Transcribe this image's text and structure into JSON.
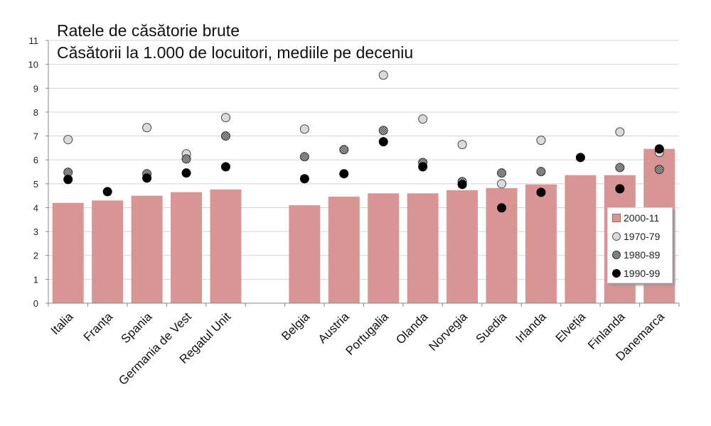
{
  "chart_data": {
    "type": "bar",
    "title": "Ratele de căsătorie brute",
    "subtitle": "Căsătorii la 1.000 de locuitori, mediile pe deceniu",
    "xlabel": "",
    "ylabel": "",
    "ylim": [
      0,
      11
    ],
    "yticks": [
      "0",
      "1",
      "2",
      "3",
      "4",
      "5",
      "6",
      "7",
      "8",
      "9",
      "10",
      "11"
    ],
    "grid": true,
    "legend_position": "right",
    "categories": [
      "Italia",
      "Franța",
      "Spania",
      "Germania de Vest",
      "Regatul Unit",
      "Belgia",
      "Austria",
      "Portugalia",
      "Olanda",
      "Norvegia",
      "Suedia",
      "Irlanda",
      "Elveția",
      "Finlanda",
      "Danemarca"
    ],
    "series": [
      {
        "name": "2000-11",
        "kind": "bar",
        "color": "#d99594",
        "values": [
          4.2,
          4.3,
          4.5,
          4.65,
          4.76,
          4.1,
          4.46,
          4.6,
          4.6,
          4.73,
          4.82,
          4.97,
          5.36,
          5.36,
          6.46
        ]
      },
      {
        "name": "1970-79",
        "kind": "point",
        "color": "#d9d9de",
        "values": [
          6.85,
          null,
          7.35,
          6.25,
          7.77,
          7.29,
          null,
          9.55,
          7.71,
          6.64,
          5.0,
          6.82,
          null,
          7.17,
          6.31
        ]
      },
      {
        "name": "1980-89",
        "kind": "point",
        "color": "#777777",
        "values": [
          5.48,
          null,
          5.42,
          6.04,
          7.0,
          6.13,
          6.43,
          7.23,
          5.89,
          5.09,
          5.45,
          5.51,
          null,
          5.68,
          5.6
        ]
      },
      {
        "name": "1990-99",
        "kind": "point",
        "color": "#000000",
        "values": [
          5.18,
          4.67,
          5.24,
          5.45,
          5.71,
          5.21,
          5.42,
          6.76,
          5.71,
          4.97,
          3.99,
          4.64,
          6.1,
          4.79,
          6.46
        ]
      }
    ]
  }
}
